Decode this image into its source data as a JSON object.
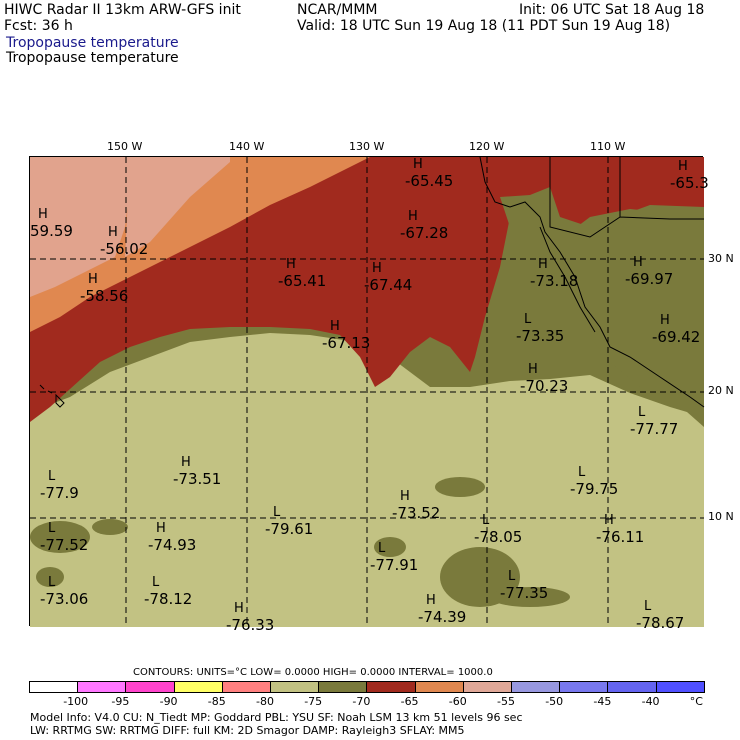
{
  "header": {
    "title_left": "HIWC Radar II 13km ARW-GFS init",
    "forecast": "Fcst:    36 h",
    "source": "NCAR/MMM",
    "init": "Init: 06 UTC Sat 18 Aug 18",
    "valid": "Valid: 18 UTC Sun 19 Aug 18 (11 PDT Sun 19 Aug 18)",
    "field_blue": "Tropopause temperature",
    "field_black": "Tropopause temperature"
  },
  "map": {
    "lon_labels": [
      "150 W",
      "140 W",
      "130 W",
      "120 W",
      "110 W"
    ],
    "lat_labels": [
      "30 N",
      "20 N",
      "10 N"
    ],
    "markers": [
      {
        "type": "H",
        "value": "-65.45"
      },
      {
        "type": "H",
        "value": "-65.3"
      },
      {
        "type": "H",
        "value": "59.59"
      },
      {
        "type": "H",
        "value": "-56.02"
      },
      {
        "type": "H",
        "value": "-58.56"
      },
      {
        "type": "H",
        "value": "-65.41"
      },
      {
        "type": "H",
        "value": "-67.44"
      },
      {
        "type": "H",
        "value": "-67.28"
      },
      {
        "type": "H",
        "value": "-73.18"
      },
      {
        "type": "H",
        "value": "-69.97"
      },
      {
        "type": "H",
        "value": "-69.42"
      },
      {
        "type": "H",
        "value": "-67.13"
      },
      {
        "type": "L",
        "value": "-73.35"
      },
      {
        "type": "H",
        "value": "-70.23"
      },
      {
        "type": "L",
        "value": "-77.77"
      },
      {
        "type": "H",
        "value": "-73.51"
      },
      {
        "type": "L",
        "value": "-77.9"
      },
      {
        "type": "L",
        "value": "-79.75"
      },
      {
        "type": "H",
        "value": "-73.52"
      },
      {
        "type": "L",
        "value": "-79.61"
      },
      {
        "type": "L",
        "value": "-77.52"
      },
      {
        "type": "H",
        "value": "-74.93"
      },
      {
        "type": "L",
        "value": "-78.05"
      },
      {
        "type": "H",
        "value": "-76.11"
      },
      {
        "type": "L",
        "value": "-77.91"
      },
      {
        "type": "L",
        "value": "-73.06"
      },
      {
        "type": "L",
        "value": "-78.12"
      },
      {
        "type": "L",
        "value": "-77.35"
      },
      {
        "type": "H",
        "value": "-76.33"
      },
      {
        "type": "H",
        "value": "-74.39"
      },
      {
        "type": "L",
        "value": "-78.67"
      }
    ]
  },
  "contour_line": "CONTOURS:  UNITS=°C  LOW=  0.0000        HIGH=  0.0000        INTERVAL=   1000.0",
  "colorbar": {
    "colors": [
      "#ffffff",
      "#ff77ff",
      "#ff44cc",
      "#ffff66",
      "#ff8080",
      "#c2c283",
      "#7a7a3c",
      "#a12a1e",
      "#e08850",
      "#e0a898",
      "#9898e0",
      "#7878ee",
      "#6464f0",
      "#5050ff"
    ],
    "ticks": [
      "-100",
      "-95",
      "-90",
      "-85",
      "-80",
      "-75",
      "-70",
      "-65",
      "-60",
      "-55",
      "-50",
      "-45",
      "-40",
      "°C"
    ]
  },
  "footer": {
    "line1": "Model Info: V4.0     CU: N_Tiedt  MP: Goddard       PBL: YSU       SF: Noah LSM      13 km    51 levels   96 sec",
    "line2": "           LW: RRTMG    SW: RRTMG   DIFF: full     KM: 2D Smagor  DAMP: Rayleigh3   SFLAY: MM5"
  },
  "legend_colors": {
    "dark_red": "#a12a1e",
    "orange": "#e08850",
    "pink": "#e0a898",
    "olive": "#7a7a3c",
    "khaki": "#c2c283"
  }
}
